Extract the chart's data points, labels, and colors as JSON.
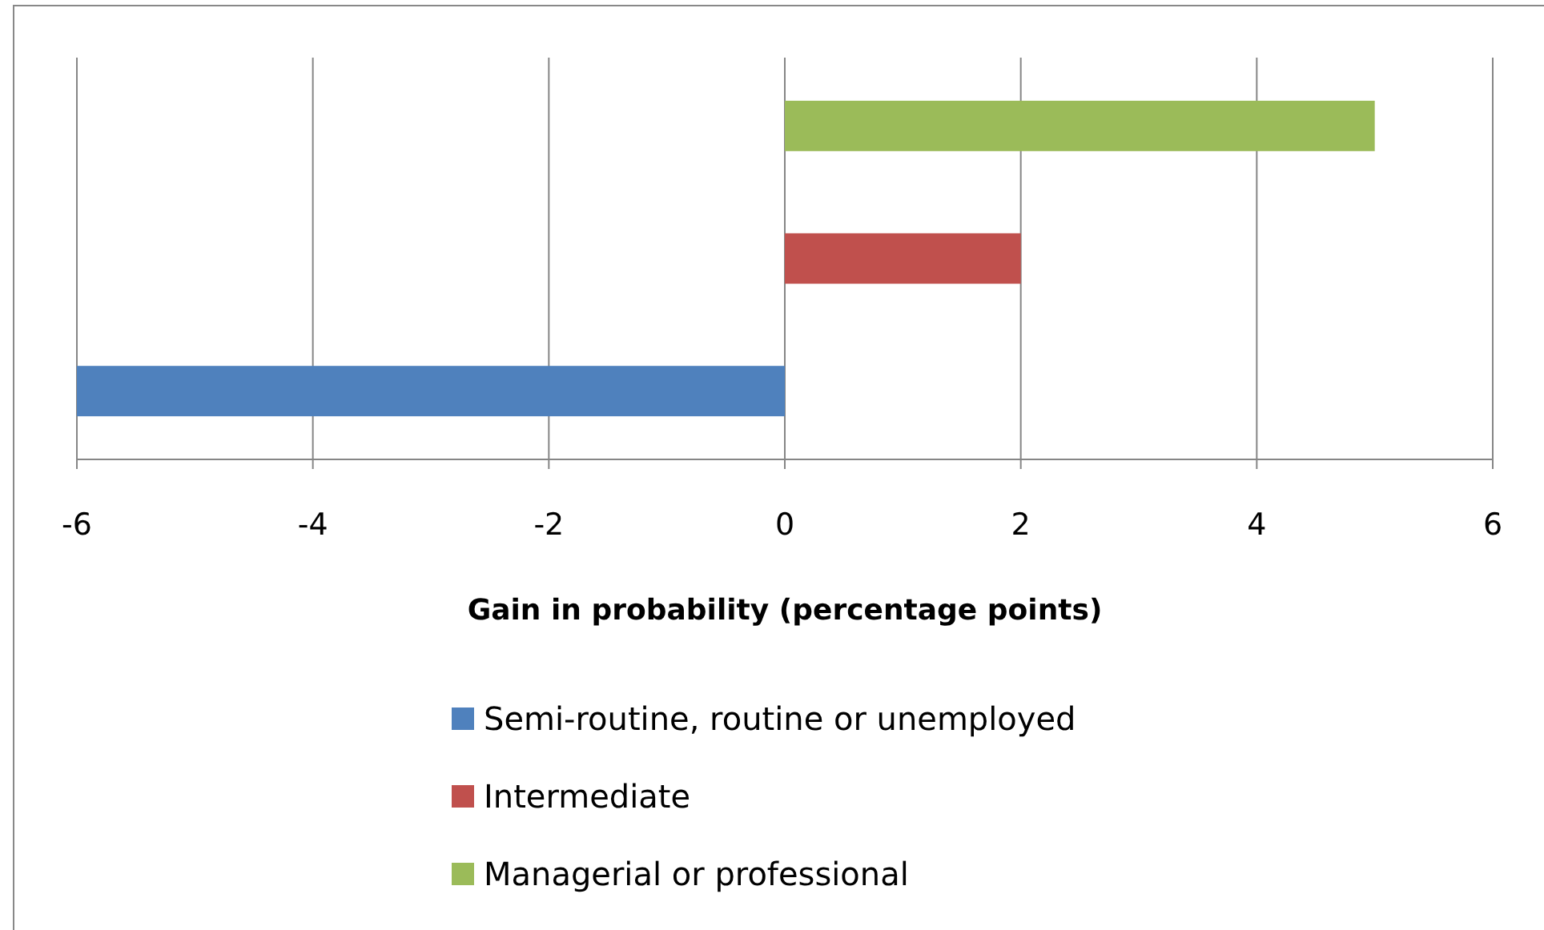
{
  "chart_data": {
    "type": "bar",
    "orientation": "horizontal",
    "categories": [
      null
    ],
    "xlabel": "Gain in probability (percentage points)",
    "series": [
      {
        "name": "Semi-routine, routine or unemployed",
        "color": "#4f81bd",
        "values": [
          -6
        ]
      },
      {
        "name": "Intermediate",
        "color": "#c0504d",
        "values": [
          2
        ]
      },
      {
        "name": "Managerial or professional",
        "color": "#9bbb59",
        "values": [
          5
        ]
      }
    ],
    "xlim": [
      -6,
      6
    ],
    "xticks": [
      -6,
      -4,
      -2,
      0,
      2,
      4,
      6
    ],
    "grid": "x",
    "legend": "bottom"
  }
}
